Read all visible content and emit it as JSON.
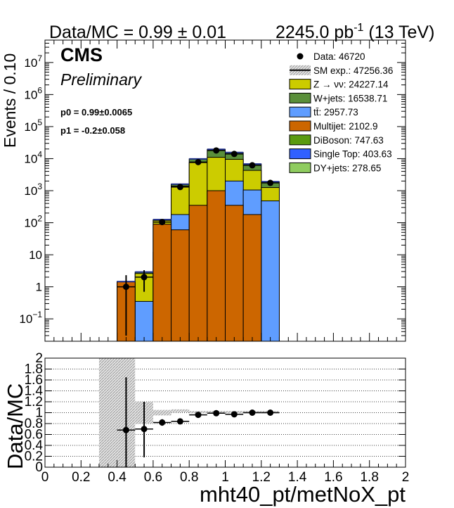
{
  "header": {
    "ratio_text": "Data/MC = 0.99 ± 0.01",
    "lumi_value": "2245.0 pb",
    "lumi_exp": "-1",
    "lumi_energy": " (13 TeV)"
  },
  "labels": {
    "cms": "CMS",
    "preliminary": "Preliminary",
    "p0": "p0 = 0.99±0.0065",
    "p1": "p1 = -0.2±0.058"
  },
  "colors": {
    "znunu": "#cccc00",
    "wjets": "#5a8f3a",
    "ttbar": "#5f9dff",
    "multijet": "#cc6600",
    "diboson": "#5a9a10",
    "singletop": "#3060ff",
    "dyjets": "#8fcc5f",
    "mc_unc": "#a0a0a0"
  },
  "chart_data": [
    {
      "type": "bar",
      "subtype": "stacked-histogram-with-data-points",
      "ylabel": "Events / 0.10",
      "yscale": "log",
      "ylim": [
        0.02,
        50000000
      ],
      "xlim": [
        0,
        2
      ],
      "bin_edges": [
        0.4,
        0.5,
        0.6,
        0.7,
        0.8,
        0.9,
        1.0,
        1.1,
        1.2,
        1.3
      ],
      "y_ticks": [
        {
          "v": 0.1,
          "base": "10",
          "exp": "−1"
        },
        {
          "v": 1,
          "text": "1"
        },
        {
          "v": 10,
          "text": "10"
        },
        {
          "v": 100,
          "base": "10",
          "exp": "2"
        },
        {
          "v": 1000,
          "base": "10",
          "exp": "3"
        },
        {
          "v": 10000,
          "base": "10",
          "exp": "4"
        },
        {
          "v": 100000,
          "base": "10",
          "exp": "5"
        },
        {
          "v": 1000000,
          "base": "10",
          "exp": "6"
        },
        {
          "v": 10000000,
          "base": "10",
          "exp": "7"
        }
      ],
      "stack_totals": [
        1.45,
        2.9,
        125,
        1600,
        9800,
        19500,
        15500,
        6800,
        1900
      ],
      "series": [
        {
          "key": "multijet",
          "name": "Multijet: 2102.9",
          "color": "#cc6600",
          "cumulative": [
            1.45,
            0,
            90,
            60,
            350,
            1000,
            350,
            180,
            0
          ]
        },
        {
          "key": "ttbar",
          "name": "tt̄: 2957.73",
          "color": "#5f9dff",
          "cumulative": [
            1.45,
            0.35,
            12,
            180,
            230,
            1000,
            2000,
            1050,
            480
          ]
        },
        {
          "key": "znunu",
          "name": "Z → νν: 24227.14",
          "color": "#cccc00",
          "cumulative": [
            1.45,
            2.6,
            118,
            1400,
            7500,
            11000,
            9500,
            4300,
            1250
          ]
        },
        {
          "key": "wjets",
          "name": "W+jets: 16538.71",
          "color": "#5a8f3a",
          "cumulative": [
            1.45,
            2.9,
            125,
            1600,
            9800,
            19500,
            15500,
            6800,
            1900
          ]
        }
      ],
      "legend_entries": [
        {
          "key": "data",
          "label": "Data: 46720",
          "kind": "marker",
          "color": "#000000"
        },
        {
          "key": "smexp",
          "label": "SM exp.: 47256.36",
          "kind": "hatch",
          "color": "#a0a0a0"
        },
        {
          "key": "znunu",
          "label": "Z → νν: 24227.14",
          "kind": "box",
          "color": "#cccc00"
        },
        {
          "key": "wjets",
          "label": "W+jets: 16538.71",
          "kind": "box",
          "color": "#5a8f3a"
        },
        {
          "key": "ttbar",
          "label": "tt̄: 2957.73",
          "kind": "box",
          "color": "#5f9dff"
        },
        {
          "key": "multijet",
          "label": "Multijet: 2102.9",
          "kind": "box",
          "color": "#cc6600"
        },
        {
          "key": "diboson",
          "label": "DiBoson: 747.63",
          "kind": "box",
          "color": "#5a9a10"
        },
        {
          "key": "singletop",
          "label": "Single Top: 403.63",
          "kind": "box",
          "color": "#3060ff"
        },
        {
          "key": "dyjets",
          "label": "DY+jets: 278.65",
          "kind": "box",
          "color": "#8fcc5f"
        }
      ],
      "data_points": [
        {
          "x": 0.45,
          "y": 1.0,
          "ylo": 0.03,
          "yhi": 2.3
        },
        {
          "x": 0.55,
          "y": 2.0,
          "ylo": 0.7,
          "yhi": 3.3
        },
        {
          "x": 0.65,
          "y": 105,
          "ylo": 95,
          "yhi": 115
        },
        {
          "x": 0.75,
          "y": 1300,
          "ylo": 1265,
          "yhi": 1335
        },
        {
          "x": 0.85,
          "y": 7800,
          "ylo": 7710,
          "yhi": 7890
        },
        {
          "x": 0.95,
          "y": 18000,
          "ylo": 17870,
          "yhi": 18130
        },
        {
          "x": 1.05,
          "y": 14000,
          "ylo": 13880,
          "yhi": 14120
        },
        {
          "x": 1.15,
          "y": 6200,
          "ylo": 6120,
          "yhi": 6280
        },
        {
          "x": 1.25,
          "y": 1750,
          "ylo": 1710,
          "yhi": 1790
        }
      ]
    },
    {
      "type": "scatter",
      "subtype": "ratio-panel",
      "ylabel": "Data/MC",
      "xlabel": "mht40_pt/metNoX_pt",
      "xlim": [
        0,
        2
      ],
      "ylim": [
        0,
        2
      ],
      "x_ticks": [
        "0",
        "0.2",
        "0.4",
        "0.6",
        "0.8",
        "1",
        "1.2",
        "1.4",
        "1.6",
        "1.8",
        "2"
      ],
      "y_ticks": [
        "0",
        "0.2",
        "0.4",
        "0.6",
        "0.8",
        "1",
        "1.2",
        "1.4",
        "1.6",
        "1.8",
        "2"
      ],
      "grid": true,
      "unc_bands": [
        {
          "x0": 0.3,
          "x1": 0.5,
          "lo": 0,
          "hi": 2.0
        },
        {
          "x0": 0.5,
          "x1": 0.6,
          "lo": 0.8,
          "hi": 1.2
        },
        {
          "x0": 0.6,
          "x1": 0.7,
          "lo": 0.95,
          "hi": 1.05
        },
        {
          "x0": 0.7,
          "x1": 0.8,
          "lo": 1.01,
          "hi": 1.06
        },
        {
          "x0": 0.8,
          "x1": 1.3,
          "lo": 0.99,
          "hi": 1.03
        }
      ],
      "points": [
        {
          "x": 0.45,
          "y": 0.68,
          "ylo": 0.0,
          "yhi": 1.65,
          "xlo": 0.4,
          "xhi": 0.5
        },
        {
          "x": 0.55,
          "y": 0.7,
          "ylo": 0.18,
          "yhi": 1.2,
          "xlo": 0.5,
          "xhi": 0.6
        },
        {
          "x": 0.65,
          "y": 0.82,
          "ylo": 0.76,
          "yhi": 0.88,
          "xlo": 0.6,
          "xhi": 0.7
        },
        {
          "x": 0.75,
          "y": 0.84,
          "ylo": 0.82,
          "yhi": 0.86,
          "xlo": 0.7,
          "xhi": 0.8
        },
        {
          "x": 0.85,
          "y": 0.96,
          "ylo": 0.95,
          "yhi": 0.97,
          "xlo": 0.8,
          "xhi": 0.9
        },
        {
          "x": 0.95,
          "y": 0.99,
          "ylo": 0.98,
          "yhi": 1.0,
          "xlo": 0.9,
          "xhi": 1.0
        },
        {
          "x": 1.05,
          "y": 0.97,
          "ylo": 0.96,
          "yhi": 0.98,
          "xlo": 1.0,
          "xhi": 1.1
        },
        {
          "x": 1.15,
          "y": 1.0,
          "ylo": 0.99,
          "yhi": 1.01,
          "xlo": 1.1,
          "xhi": 1.2
        },
        {
          "x": 1.25,
          "y": 1.0,
          "ylo": 0.98,
          "yhi": 1.02,
          "xlo": 1.2,
          "xhi": 1.3
        }
      ]
    }
  ]
}
